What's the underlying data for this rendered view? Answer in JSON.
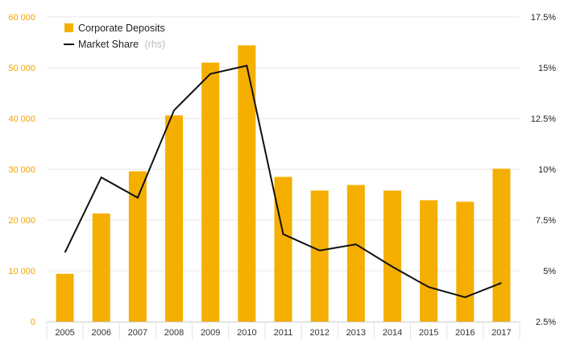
{
  "chart_data": {
    "type": "bar",
    "categories": [
      "2005",
      "2006",
      "2007",
      "2008",
      "2009",
      "2010",
      "2011",
      "2012",
      "2013",
      "2014",
      "2015",
      "2016",
      "2017"
    ],
    "series": [
      {
        "name": "Corporate Deposits",
        "type": "bar",
        "axis": "left",
        "color": "#F5AF00",
        "values": [
          9400,
          21300,
          29600,
          40600,
          51000,
          54400,
          28500,
          25800,
          26900,
          25800,
          23900,
          23600,
          30100
        ]
      },
      {
        "name": "Market Share",
        "legend_suffix": "(rhs)",
        "type": "line",
        "axis": "right",
        "color": "#111111",
        "values": [
          5.9,
          9.6,
          8.6,
          12.9,
          14.7,
          15.1,
          6.8,
          6.0,
          6.3,
          5.2,
          4.2,
          3.7,
          4.4
        ]
      }
    ],
    "left_axis": {
      "ylim": [
        0,
        60000
      ],
      "ticks": [
        0,
        10000,
        20000,
        30000,
        40000,
        50000,
        60000
      ],
      "tick_labels": [
        "0",
        "10 000",
        "20 000",
        "30 000",
        "40 000",
        "50 000",
        "60 000"
      ],
      "color": "#F5A300"
    },
    "right_axis": {
      "ylim": [
        2.5,
        17.5
      ],
      "ticks": [
        2.5,
        5,
        7.5,
        10,
        12.5,
        15,
        17.5
      ],
      "tick_labels": [
        "2.5%",
        "5%",
        "7.5%",
        "10%",
        "12.5%",
        "15%",
        "17.5%"
      ],
      "color": "#222222"
    },
    "grid": true,
    "legend_position": "top-left"
  }
}
